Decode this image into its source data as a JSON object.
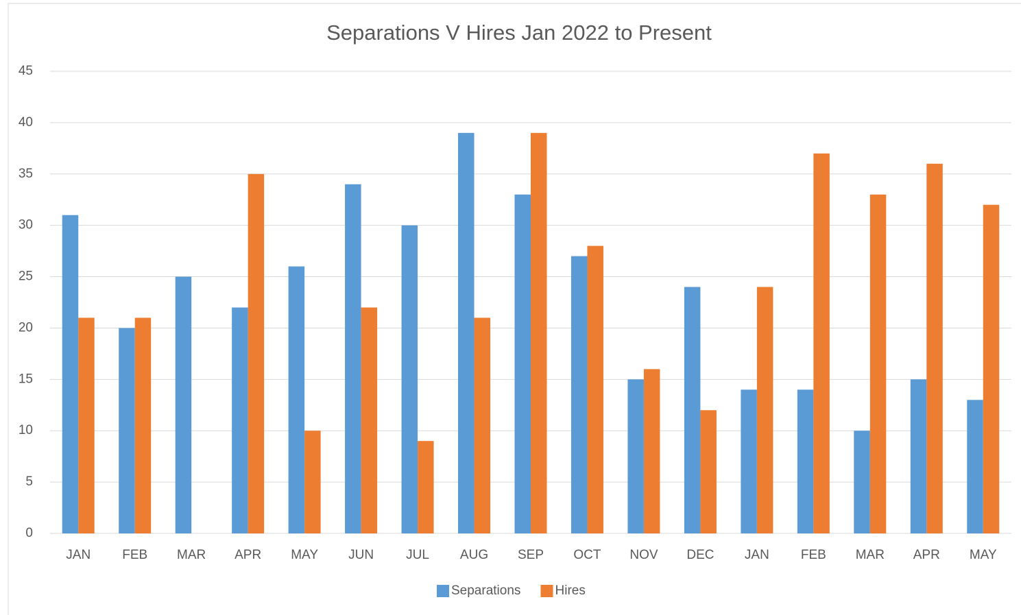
{
  "chart_data": {
    "type": "bar",
    "title": "Separations V Hires Jan 2022 to Present",
    "categories": [
      "JAN",
      "FEB",
      "MAR",
      "APR",
      "MAY",
      "JUN",
      "JUL",
      "AUG",
      "SEP",
      "OCT",
      "NOV",
      "DEC",
      "JAN",
      "FEB",
      "MAR",
      "APR",
      "MAY"
    ],
    "series": [
      {
        "name": "Separations",
        "color": "#5b9bd5",
        "values": [
          31,
          20,
          25,
          22,
          26,
          34,
          30,
          39,
          33,
          27,
          15,
          24,
          14,
          14,
          10,
          15,
          13
        ]
      },
      {
        "name": "Hires",
        "color": "#ed7d31",
        "values": [
          21,
          21,
          null,
          35,
          10,
          22,
          9,
          21,
          39,
          28,
          16,
          12,
          24,
          37,
          33,
          36,
          32
        ]
      }
    ],
    "ylim": [
      0,
      45
    ],
    "yticks": [
      0,
      5,
      10,
      15,
      20,
      25,
      30,
      35,
      40,
      45
    ],
    "grid": true,
    "legend": "bottom"
  }
}
